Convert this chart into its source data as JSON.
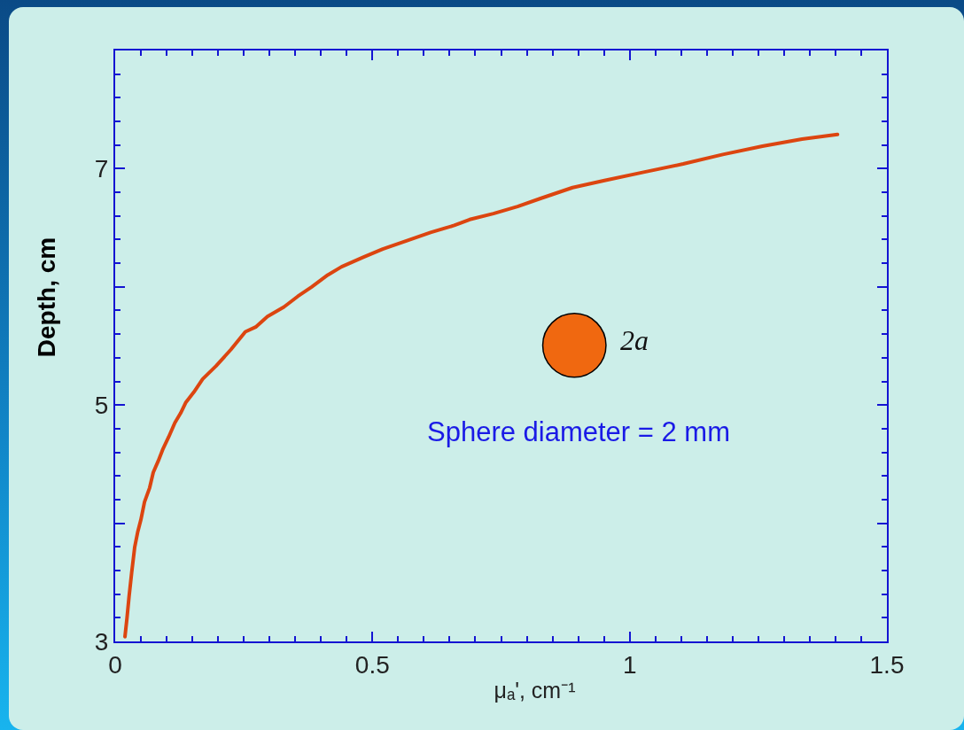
{
  "chart_data": {
    "type": "line",
    "xlabel": "μₐ', cm⁻¹",
    "ylabel": "Depth, cm",
    "x": [
      0.019,
      0.023,
      0.027,
      0.032,
      0.038,
      0.044,
      0.05,
      0.057,
      0.067,
      0.074,
      0.084,
      0.093,
      0.104,
      0.116,
      0.127,
      0.137,
      0.153,
      0.17,
      0.196,
      0.225,
      0.253,
      0.273,
      0.296,
      0.328,
      0.355,
      0.382,
      0.413,
      0.44,
      0.482,
      0.52,
      0.566,
      0.613,
      0.659,
      0.689,
      0.735,
      0.782,
      0.828,
      0.889,
      0.951,
      1.027,
      1.104,
      1.181,
      1.258,
      1.335,
      1.404
    ],
    "values": [
      3.04,
      3.2,
      3.38,
      3.58,
      3.8,
      3.93,
      4.03,
      4.18,
      4.3,
      4.43,
      4.53,
      4.63,
      4.73,
      4.85,
      4.93,
      5.02,
      5.11,
      5.22,
      5.33,
      5.47,
      5.62,
      5.66,
      5.75,
      5.83,
      5.92,
      6.0,
      6.1,
      6.17,
      6.25,
      6.32,
      6.39,
      6.46,
      6.52,
      6.57,
      6.62,
      6.68,
      6.75,
      6.84,
      6.9,
      6.97,
      7.04,
      7.12,
      7.19,
      7.25,
      7.29
    ],
    "color": "#dc4510",
    "xlim": [
      0,
      1.5
    ],
    "ylim": [
      3,
      8
    ],
    "xticks": [
      0,
      0.5,
      1,
      1.5
    ],
    "yticks": [
      3,
      {
        "value": 4,
        "label": null
      },
      5,
      {
        "value": 6,
        "label": null
      },
      7,
      {
        "value": 8,
        "label": null
      }
    ],
    "grid": false,
    "annotations": [
      "2a",
      "Sphere diameter = 2 mm"
    ]
  }
}
